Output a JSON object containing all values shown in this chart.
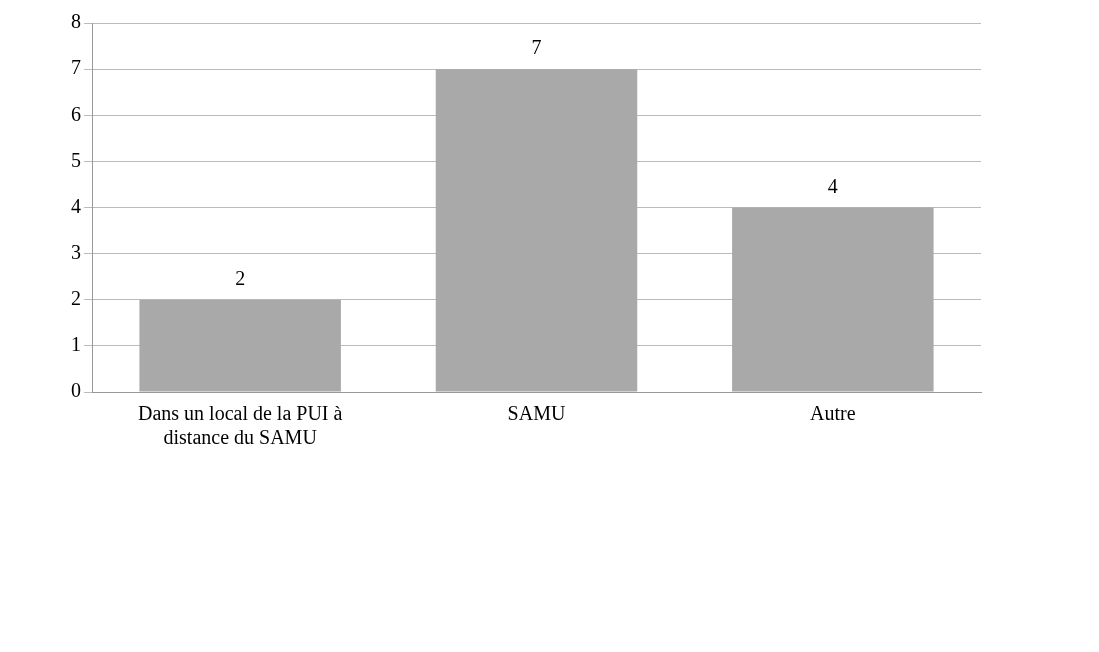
{
  "chart_data": {
    "type": "bar",
    "categories": [
      "Dans un local de la PUI à distance du SAMU",
      "SAMU",
      "Autre"
    ],
    "values": [
      2,
      7,
      4
    ],
    "color": "#a9a9a9",
    "ylim": [
      0,
      8
    ],
    "yticks": [
      0,
      1,
      2,
      3,
      4,
      5,
      6,
      7,
      8
    ],
    "grid": "y",
    "data_labels": true,
    "legend": false
  }
}
